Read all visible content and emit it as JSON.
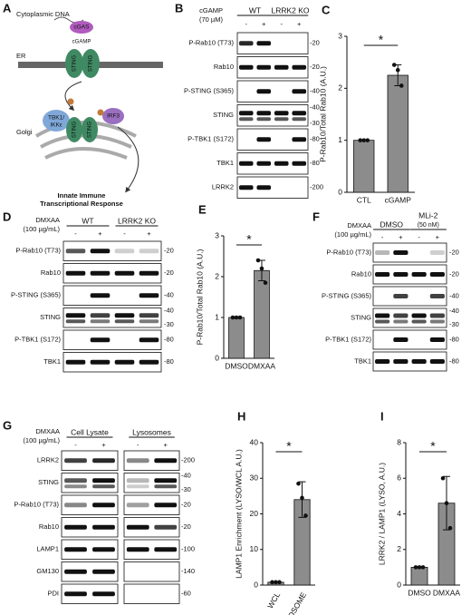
{
  "panels": {
    "A": {
      "letter": "A",
      "labels": [
        "Cytoplasmic DNA",
        "cGAS",
        "cGAMP",
        "ER",
        "STING",
        "STING",
        "TBK1/",
        "IKKε",
        "STING",
        "STING",
        "IRF3",
        "Golgi",
        "Innate Immune",
        "Transcriptional Response"
      ]
    },
    "B": {
      "letter": "B",
      "treatment": [
        "cGAMP",
        "(70 µM)"
      ],
      "groups": [
        [
          "WT"
        ],
        [
          "LRRK2 KO"
        ]
      ],
      "signs": [
        "-",
        "+",
        "-",
        "+"
      ],
      "rows": [
        {
          "label": "P-Rab10 (T73)",
          "mw": [
            "-20"
          ]
        },
        {
          "label": "Rab10",
          "mw": [
            "-20"
          ]
        },
        {
          "label": "P-STING (S365)",
          "mw": [
            "-40"
          ]
        },
        {
          "label": "STING",
          "mw": [
            "-40",
            "-30"
          ]
        },
        {
          "label": "P-TBK1 (S172)",
          "mw": [
            "-80"
          ]
        },
        {
          "label": "TBK1",
          "mw": [
            "-80"
          ]
        },
        {
          "label": "LRRK2",
          "mw": [
            "-200"
          ]
        }
      ]
    },
    "D": {
      "letter": "D",
      "treatment": [
        "DMXAA",
        "(100 µg/mL)"
      ],
      "groups": [
        [
          "WT"
        ],
        [
          "LRRK2 KO"
        ]
      ],
      "signs": [
        "-",
        "+",
        "-",
        "+"
      ],
      "rows": [
        {
          "label": "P-Rab10 (T73)",
          "mw": [
            "-20"
          ]
        },
        {
          "label": "Rab10",
          "mw": [
            "-20"
          ]
        },
        {
          "label": "P-STING (S365)",
          "mw": [
            "-40"
          ]
        },
        {
          "label": "STING",
          "mw": [
            "-40",
            "-30"
          ]
        },
        {
          "label": "P-TBK1 (S172)",
          "mw": [
            "-80"
          ]
        },
        {
          "label": "TBK1",
          "mw": [
            "-80"
          ]
        }
      ]
    },
    "F": {
      "letter": "F",
      "treatment": [
        "DMXAA",
        "(100 µg/mL)"
      ],
      "groups": [
        [
          "DMSO"
        ],
        [
          "MLi-2",
          "(50 nM)"
        ]
      ],
      "signs": [
        "-",
        "+",
        "-",
        "+"
      ],
      "rows": [
        {
          "label": "P-Rab10 (T73)",
          "mw": [
            "-20"
          ]
        },
        {
          "label": "Rab10",
          "mw": [
            "-20"
          ]
        },
        {
          "label": "P-STING (S365)",
          "mw": [
            "-40"
          ]
        },
        {
          "label": "STING",
          "mw": [
            "-40",
            "-30"
          ]
        },
        {
          "label": "P-TBK1 (S172)",
          "mw": [
            "-80"
          ]
        },
        {
          "label": "TBK1",
          "mw": [
            "-80"
          ]
        }
      ]
    },
    "G": {
      "letter": "G",
      "treatment": [
        "DMXAA",
        "(100 µg/mL)"
      ],
      "groups": [
        [
          "Cell Lysate"
        ],
        [
          "Lysosomes"
        ]
      ],
      "signs": [
        "-",
        "+",
        "-",
        "+"
      ],
      "rows": [
        {
          "label": "LRRK2",
          "mw": [
            "-200"
          ]
        },
        {
          "label": "STING",
          "mw": [
            "-40",
            "-30"
          ]
        },
        {
          "label": "P-Rab10 (T73)",
          "mw": [
            "-20"
          ]
        },
        {
          "label": "Rab10",
          "mw": [
            "-20"
          ]
        },
        {
          "label": "LAMP1",
          "mw": [
            "-100"
          ]
        },
        {
          "label": "GM130",
          "mw": [
            "-140"
          ]
        },
        {
          "label": "PDI",
          "mw": [
            "-60"
          ]
        }
      ]
    }
  },
  "chart_data": [
    {
      "type": "bar",
      "letter": "C",
      "y_label": "P-Rab10/Total Rab10 (A.U.)",
      "categories": [
        "CTL",
        "cGAMP"
      ],
      "values": [
        1,
        2.25
      ],
      "errors": [
        0,
        0.2
      ],
      "points": [
        [
          1,
          1,
          1
        ],
        [
          2.45,
          2.35,
          2.05
        ]
      ],
      "color": "#8c8c8c",
      "ylim": [
        0,
        3
      ],
      "yticks": [
        0,
        1,
        2,
        3
      ],
      "significance": "*"
    },
    {
      "type": "bar",
      "letter": "E",
      "y_label": "P-Rab10/Total Rab10 (A.U.)",
      "categories": [
        "DMSO",
        "DMXAA"
      ],
      "values": [
        1,
        2.15
      ],
      "errors": [
        0,
        0.25
      ],
      "points": [
        [
          1,
          1,
          1
        ],
        [
          2.4,
          2.2,
          1.85
        ]
      ],
      "color": "#8c8c8c",
      "ylim": [
        0,
        3
      ],
      "yticks": [
        0,
        1,
        2,
        3
      ],
      "significance": "*"
    },
    {
      "type": "bar",
      "letter": "H",
      "y_label": "LAMP1 Enrichment (LYSO/WCL A.U.)",
      "categories": [
        "WCL",
        "LYSOSOME"
      ],
      "values": [
        0.8,
        24
      ],
      "errors": [
        0.2,
        5
      ],
      "points": [
        [
          0.8,
          0.8,
          0.8
        ],
        [
          28.5,
          24.5,
          19.5
        ]
      ],
      "color": "#8c8c8c",
      "ylim": [
        0,
        40
      ],
      "yticks": [
        0,
        10,
        20,
        30,
        40
      ],
      "significance": "*",
      "rotate_categories": true
    },
    {
      "type": "bar",
      "letter": "I",
      "y_label": "LRRK2 / LAMP1 (LYSO, A.U.)",
      "categories": [
        "DMSO",
        "DMXAA"
      ],
      "values": [
        1,
        4.6
      ],
      "errors": [
        0,
        1.5
      ],
      "points": [
        [
          1,
          1,
          1
        ],
        [
          6,
          4.6,
          3.2
        ]
      ],
      "color": "#8c8c8c",
      "ylim": [
        0,
        8
      ],
      "yticks": [
        0,
        2,
        4,
        6,
        8
      ],
      "significance": "*"
    }
  ]
}
